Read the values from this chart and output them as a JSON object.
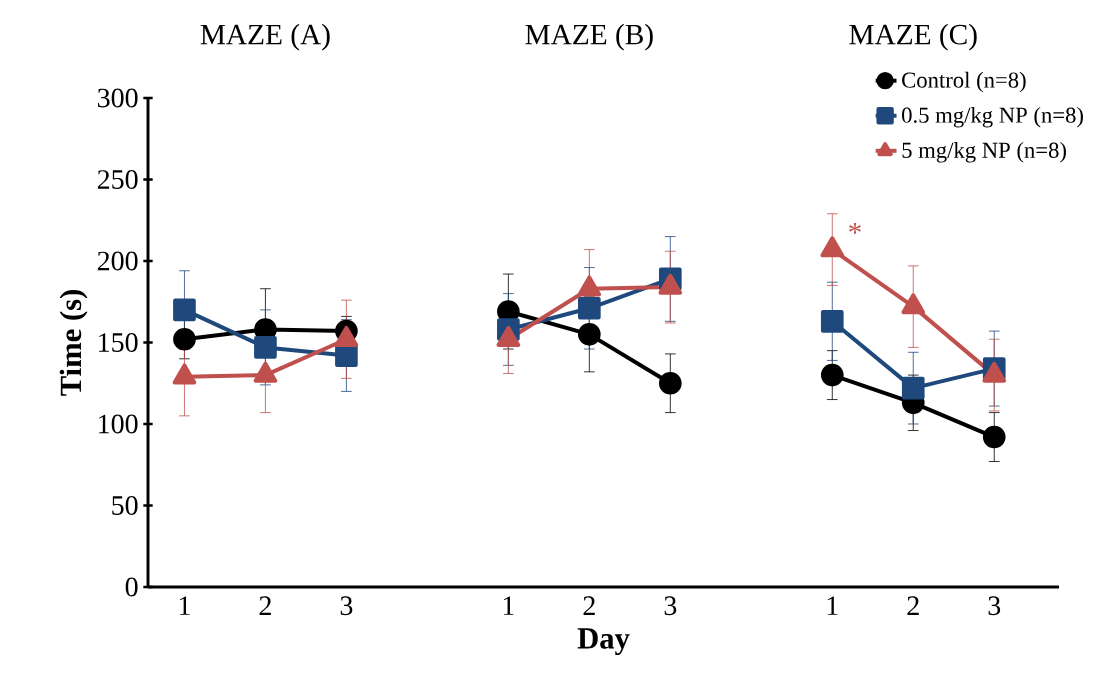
{
  "chart_data": {
    "type": "line",
    "categories": [
      "1",
      "2",
      "3",
      null,
      "1",
      "2",
      "3",
      null,
      "1",
      "2",
      "3"
    ],
    "xlabel": "Day",
    "ylabel": "Time (s)",
    "ylim": [
      0,
      300
    ],
    "yticks": [
      0,
      50,
      100,
      150,
      200,
      250,
      300
    ],
    "legend": "top right",
    "line_style": "solid",
    "series": [
      {
        "name": "Control (n=8)",
        "color": "#000000",
        "marker": "circle",
        "values": [
          152,
          158,
          157,
          null,
          169,
          155,
          125,
          null,
          130,
          113,
          92
        ],
        "errors": [
          12,
          25,
          9,
          null,
          23,
          23,
          18,
          null,
          15,
          17,
          15
        ]
      },
      {
        "name": "0.5 mg/kg NP (n=8)",
        "color": "#1f497d",
        "marker": "square",
        "values": [
          170,
          147,
          142,
          null,
          158,
          171,
          189,
          null,
          163,
          122,
          134
        ],
        "errors": [
          24,
          23,
          22,
          null,
          22,
          25,
          26,
          null,
          24,
          22,
          23
        ]
      },
      {
        "name": "5 mg/kg NP (n=8)",
        "color": "#c0504d",
        "marker": "triangle",
        "values": [
          129,
          130,
          152,
          null,
          152,
          183,
          184,
          null,
          207,
          172,
          130
        ],
        "errors": [
          24,
          23,
          24,
          null,
          21,
          24,
          22,
          null,
          22,
          25,
          22
        ]
      }
    ],
    "annotations": [
      "MAZE (A)",
      "MAZE (B)",
      "MAZE (C)",
      "*"
    ]
  }
}
